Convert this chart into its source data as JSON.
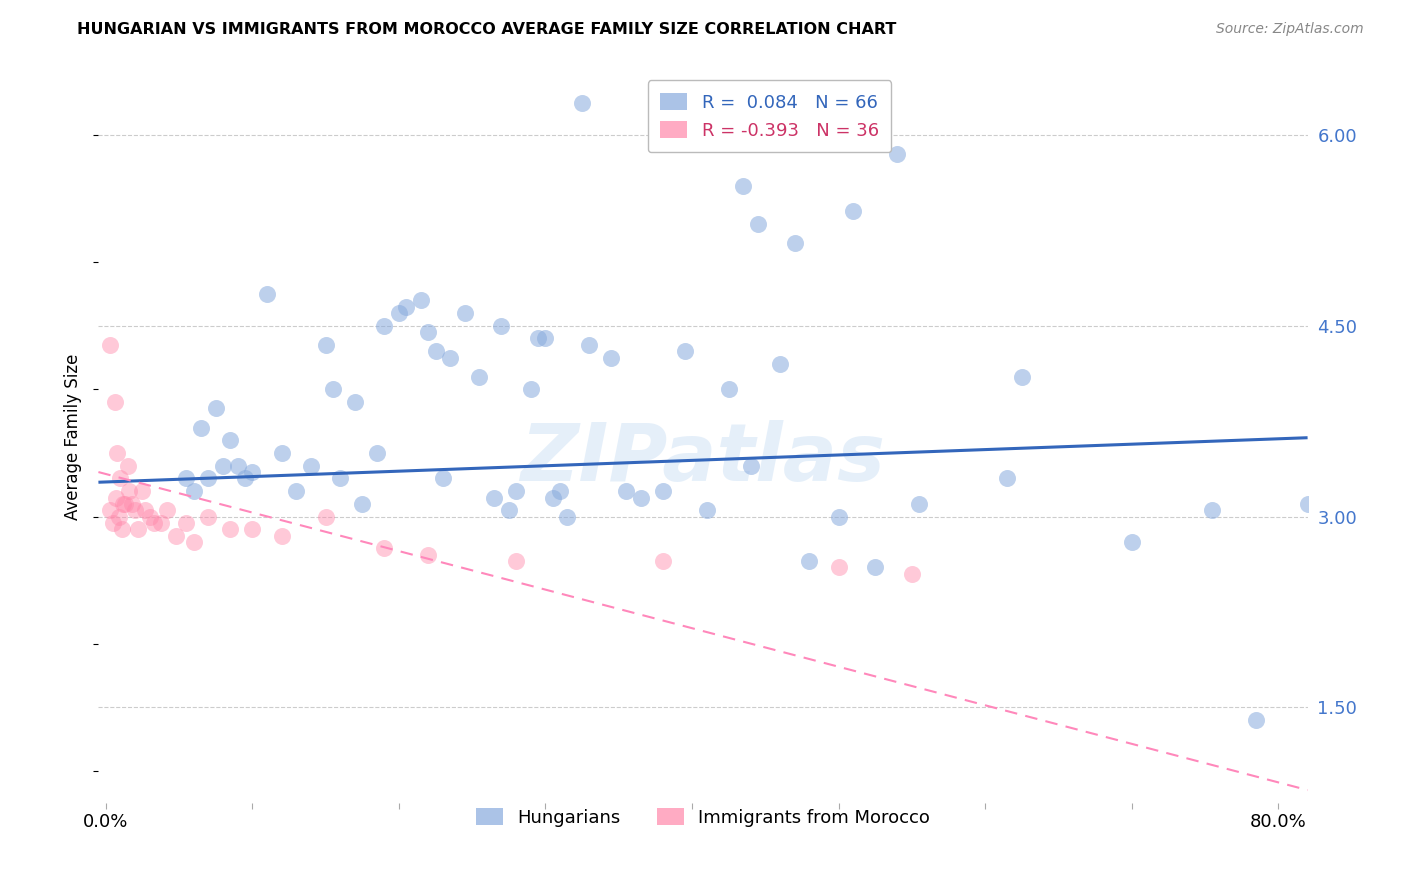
{
  "title": "HUNGARIAN VS IMMIGRANTS FROM MOROCCO AVERAGE FAMILY SIZE CORRELATION CHART",
  "source": "Source: ZipAtlas.com",
  "ylabel": "Average Family Size",
  "right_yticks": [
    6.0,
    4.5,
    3.0,
    1.5
  ],
  "ylim": [
    0.75,
    6.5
  ],
  "xlim": [
    -0.005,
    0.82
  ],
  "blue_color": "#88AADD",
  "pink_color": "#FF88AA",
  "trendline_blue_color": "#3366BB",
  "trendline_pink_color": "#FF88BB",
  "legend_R_blue": "R =  0.084",
  "legend_N_blue": "N = 66",
  "legend_R_pink": "R = -0.393",
  "legend_N_pink": "N = 36",
  "watermark": "ZIPatlas",
  "blue_points_x": [
    0.325,
    0.445,
    0.435,
    0.47,
    0.51,
    0.54,
    0.11,
    0.155,
    0.185,
    0.065,
    0.075,
    0.085,
    0.095,
    0.12,
    0.13,
    0.14,
    0.15,
    0.16,
    0.17,
    0.175,
    0.19,
    0.2,
    0.205,
    0.215,
    0.22,
    0.225,
    0.23,
    0.235,
    0.245,
    0.255,
    0.265,
    0.27,
    0.275,
    0.28,
    0.29,
    0.295,
    0.3,
    0.305,
    0.31,
    0.315,
    0.33,
    0.345,
    0.355,
    0.365,
    0.38,
    0.395,
    0.41,
    0.425,
    0.44,
    0.46,
    0.48,
    0.5,
    0.525,
    0.555,
    0.615,
    0.625,
    0.7,
    0.755,
    0.785,
    0.82,
    0.055,
    0.06,
    0.07,
    0.08,
    0.09,
    0.1
  ],
  "blue_points_y": [
    6.25,
    5.3,
    5.6,
    5.15,
    5.4,
    5.85,
    4.75,
    4.0,
    3.5,
    3.7,
    3.85,
    3.6,
    3.3,
    3.5,
    3.2,
    3.4,
    4.35,
    3.3,
    3.9,
    3.1,
    4.5,
    4.6,
    4.65,
    4.7,
    4.45,
    4.3,
    3.3,
    4.25,
    4.6,
    4.1,
    3.15,
    4.5,
    3.05,
    3.2,
    4.0,
    4.4,
    4.4,
    3.15,
    3.2,
    3.0,
    4.35,
    4.25,
    3.2,
    3.15,
    3.2,
    4.3,
    3.05,
    4.0,
    3.4,
    4.2,
    2.65,
    3.0,
    2.6,
    3.1,
    3.3,
    4.1,
    2.8,
    3.05,
    1.4,
    3.1,
    3.3,
    3.2,
    3.3,
    3.4,
    3.4,
    3.35
  ],
  "pink_points_x": [
    0.003,
    0.006,
    0.008,
    0.01,
    0.012,
    0.015,
    0.016,
    0.018,
    0.02,
    0.022,
    0.025,
    0.027,
    0.03,
    0.033,
    0.038,
    0.042,
    0.048,
    0.055,
    0.06,
    0.07,
    0.085,
    0.1,
    0.12,
    0.15,
    0.19,
    0.22,
    0.28,
    0.38,
    0.5,
    0.55,
    0.003,
    0.005,
    0.007,
    0.009,
    0.011,
    0.013
  ],
  "pink_points_y": [
    4.35,
    3.9,
    3.5,
    3.3,
    3.1,
    3.4,
    3.2,
    3.1,
    3.05,
    2.9,
    3.2,
    3.05,
    3.0,
    2.95,
    2.95,
    3.05,
    2.85,
    2.95,
    2.8,
    3.0,
    2.9,
    2.9,
    2.85,
    3.0,
    2.75,
    2.7,
    2.65,
    2.65,
    2.6,
    2.55,
    3.05,
    2.95,
    3.15,
    3.0,
    2.9,
    3.1
  ],
  "grid_color": "#CCCCCC",
  "background_color": "#FFFFFF",
  "blue_trend_x0": -0.005,
  "blue_trend_x1": 0.82,
  "blue_trend_y0": 3.27,
  "blue_trend_y1": 3.62,
  "pink_trend_x0": -0.005,
  "pink_trend_x1": 0.82,
  "pink_trend_y0": 3.35,
  "pink_trend_y1": 0.85
}
